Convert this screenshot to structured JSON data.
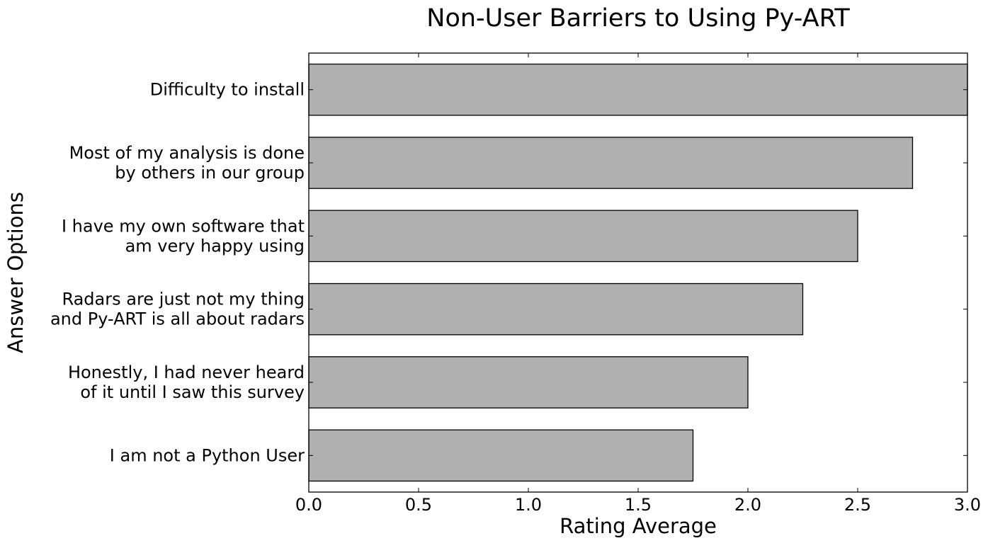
{
  "chart_data": {
    "type": "bar",
    "orientation": "horizontal",
    "title": "Non-User Barriers to Using Py-ART",
    "xlabel": "Rating Average",
    "ylabel": "Answer Options",
    "categories": [
      [
        "Difficulty to install"
      ],
      [
        "Most of my analysis is done",
        "by others in our group"
      ],
      [
        "I have my own software that",
        "am very happy using"
      ],
      [
        "Radars are just not my thing",
        "and Py-ART is all about radars"
      ],
      [
        "Honestly, I had never heard",
        "of it until I saw this survey"
      ],
      [
        "I am not a Python User"
      ]
    ],
    "values": [
      3.0,
      2.75,
      2.5,
      2.25,
      2.0,
      1.75
    ],
    "xlim": [
      0,
      3
    ],
    "xticks": [
      "0.0",
      "0.5",
      "1.0",
      "1.5",
      "2.0",
      "2.5",
      "3.0"
    ],
    "grid": false,
    "bar_color": "#b0b0b0",
    "edge_color": "#000000"
  }
}
